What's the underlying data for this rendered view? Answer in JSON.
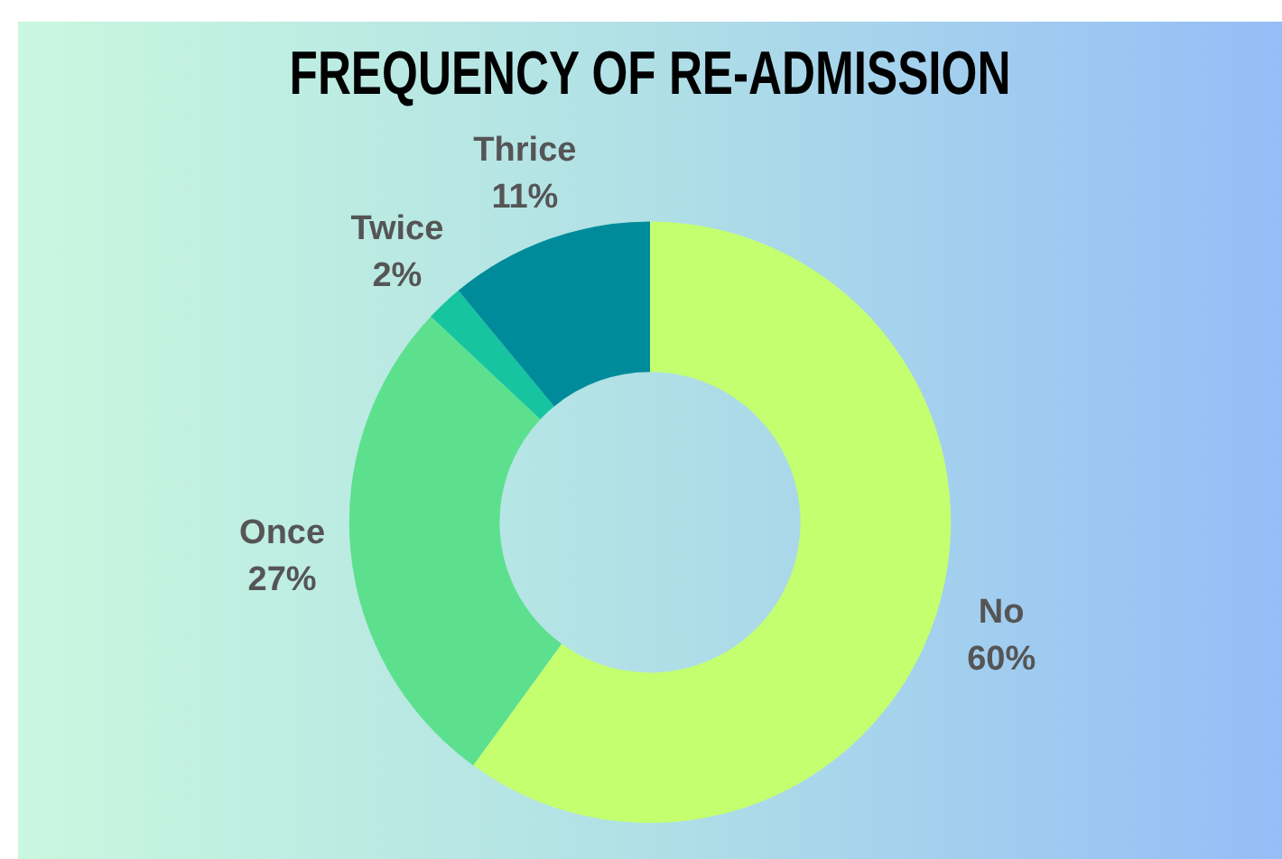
{
  "chart_data": {
    "type": "donut",
    "title": "FREQUENCY OF RE-ADMISSION",
    "categories": [
      "No",
      "Once",
      "Twice",
      "Thrice"
    ],
    "values": [
      60,
      27,
      2,
      11
    ],
    "value_labels": [
      "60%",
      "27%",
      "2%",
      "11%"
    ],
    "colors": [
      "#c4ff70",
      "#5ce08e",
      "#17c4a0",
      "#008b9b"
    ],
    "legend": false
  }
}
